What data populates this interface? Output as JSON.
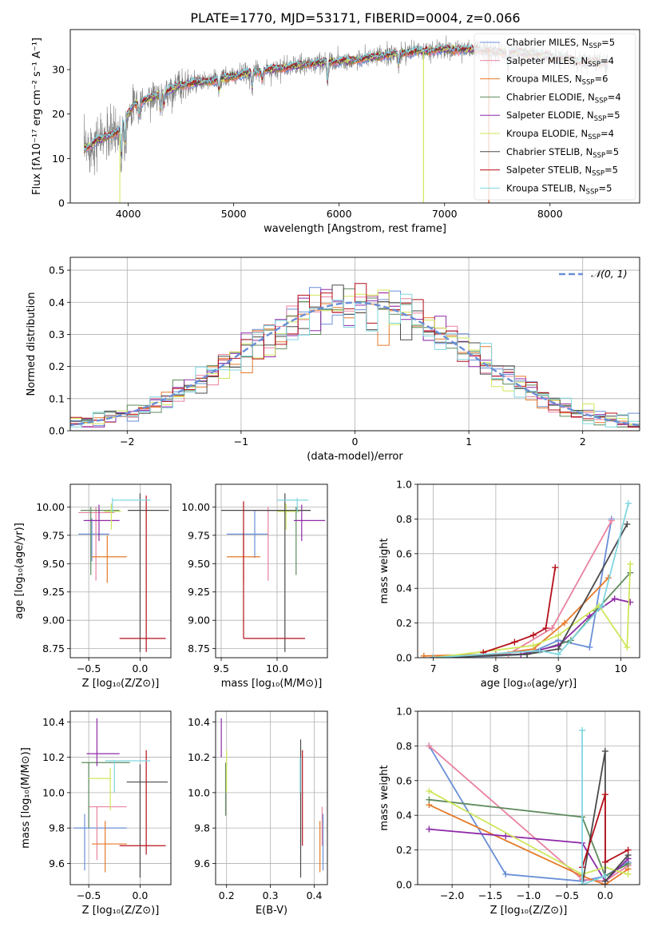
{
  "figure": {
    "title": "PLATE=1770, MJD=53171, FIBERID=0004, z=0.066"
  },
  "colors": {
    "c1": "#6a8fd8",
    "c2": "#e8829f",
    "c3": "#e5792a",
    "c4": "#5c8a5c",
    "c5": "#8e2aa8",
    "c6": "#cfe65a",
    "c7": "#4a4a4a",
    "c8": "#b5101a",
    "c9": "#7fd6e0",
    "data": "#808080",
    "normal": "#6a8fd8"
  },
  "chart_data": [
    {
      "id": "spectrum",
      "type": "line",
      "title": "PLATE=1770, MJD=53171, FIBERID=0004, z=0.066",
      "xlabel": "wavelength [Angstrom, rest frame]",
      "ylabel": "Flux [fλ10⁻¹⁷ erg cm⁻² s⁻¹ A⁻¹]",
      "xlim": [
        3450,
        8850
      ],
      "ylim": [
        0,
        39
      ],
      "xticks": [
        4000,
        5000,
        6000,
        7000,
        8000
      ],
      "yticks": [
        0,
        10,
        20,
        30
      ],
      "continuum": {
        "x": [
          3580,
          3700,
          3900,
          4050,
          4300,
          4500,
          4800,
          5000,
          5200,
          5500,
          5800,
          6100,
          6400,
          6700,
          7000,
          7300,
          7500,
          7700,
          7900,
          8100,
          8300,
          8500
        ],
        "y": [
          12,
          14,
          16,
          22,
          24.5,
          26.5,
          27.5,
          28.5,
          29.5,
          30.5,
          31.5,
          32,
          33,
          34,
          34.5,
          34.5,
          34,
          33.8,
          33.2,
          32.6,
          31.8,
          31.6
        ]
      },
      "data_range": [
        3580,
        8550
      ],
      "legend": [
        "Chabrier MILES, N_SSP=5",
        "Salpeter MILES, N_SSP=4",
        "Kroupa MILES, N_SSP=6",
        "Chabrier ELODIE, N_SSP=4",
        "Salpeter ELODIE, N_SSP=5",
        "Kroupa ELODIE, N_SSP=4",
        "Chabrier STELIB, N_SSP=5",
        "Salpeter STELIB, N_SSP=5",
        "Kroupa STELIB, N_SSP=5"
      ],
      "legend_position": "right"
    },
    {
      "id": "residuals",
      "type": "line",
      "xlabel": "(data-model)/error",
      "ylabel": "Normed distribution",
      "xlim": [
        -2.5,
        2.5
      ],
      "ylim": [
        0,
        0.54
      ],
      "xticks": [
        -2,
        -1,
        0,
        1,
        2
      ],
      "yticks": [
        0.0,
        0.1,
        0.2,
        0.3,
        0.4,
        0.5
      ],
      "legend": [
        "𝒩(0, 1)"
      ],
      "legend_position": "top-right",
      "bin_width": 0.1
    },
    {
      "id": "age_vs_Z",
      "type": "scatter",
      "xlabel": "Z [log₁₀(Z/Z⊙)]",
      "ylabel": "age  [log₁₀(age/yr)]",
      "xlim": [
        -0.68,
        0.3
      ],
      "ylim": [
        8.67,
        10.2
      ],
      "xticks": [
        -0.5,
        0.0
      ],
      "yticks": [
        8.75,
        9.0,
        9.25,
        9.5,
        9.75,
        10.0
      ],
      "errorbars": [
        {
          "x": -0.47,
          "y": 9.76,
          "xe": [
            -0.6,
            -0.3
          ],
          "ye": [
            9.52,
            9.9
          ]
        },
        {
          "x": -0.43,
          "y": 9.95,
          "xe": [
            -0.6,
            -0.25
          ],
          "ye": [
            9.35,
            10.0
          ]
        },
        {
          "x": -0.32,
          "y": 9.56,
          "xe": [
            -0.47,
            -0.13
          ],
          "ye": [
            9.33,
            9.75
          ]
        },
        {
          "x": -0.48,
          "y": 9.97,
          "xe": [
            -0.58,
            -0.2
          ],
          "ye": [
            9.4,
            10.0
          ]
        },
        {
          "x": -0.4,
          "y": 9.88,
          "xe": [
            -0.55,
            -0.2
          ],
          "ye": [
            9.7,
            10.02
          ]
        },
        {
          "x": -0.28,
          "y": 9.96,
          "xe": [
            -0.35,
            -0.18
          ],
          "ye": [
            9.8,
            10.03
          ]
        },
        {
          "x": 0.0,
          "y": 9.97,
          "xe": [
            -0.12,
            0.28
          ],
          "ye": [
            8.72,
            10.12
          ]
        },
        {
          "x": 0.06,
          "y": 8.84,
          "xe": [
            -0.2,
            0.25
          ],
          "ye": [
            8.72,
            10.1
          ]
        },
        {
          "x": -0.27,
          "y": 10.06,
          "xe": [
            -0.27,
            0.1
          ],
          "ye": [
            9.95,
            10.08
          ]
        }
      ]
    },
    {
      "id": "age_vs_mass",
      "type": "scatter",
      "xlabel": "mass [log₁₀(M/M⊙)]",
      "ylabel": "",
      "xlim": [
        9.45,
        10.45
      ],
      "ylim": [
        8.67,
        10.2
      ],
      "xticks": [
        9.5,
        10.0
      ],
      "yticks": [
        8.75,
        9.0,
        9.25,
        9.5,
        9.75,
        10.0
      ],
      "errorbars": [
        {
          "x": 9.8,
          "y": 9.76,
          "xe": [
            9.55,
            9.92
          ],
          "ye": [
            9.55,
            9.97
          ]
        },
        {
          "x": 9.92,
          "y": 9.97,
          "xe": [
            9.7,
            10.1
          ],
          "ye": [
            9.35,
            10.0
          ]
        },
        {
          "x": 9.7,
          "y": 9.56,
          "xe": [
            9.55,
            9.85
          ],
          "ye": [
            9.33,
            9.75
          ]
        },
        {
          "x": 10.17,
          "y": 9.97,
          "xe": [
            9.9,
            10.3
          ],
          "ye": [
            9.4,
            10.0
          ]
        },
        {
          "x": 10.22,
          "y": 9.88,
          "xe": [
            10.15,
            10.43
          ],
          "ye": [
            9.7,
            10.02
          ]
        },
        {
          "x": 10.08,
          "y": 9.96,
          "xe": [
            10.0,
            10.2
          ],
          "ye": [
            9.8,
            10.03
          ]
        },
        {
          "x": 10.07,
          "y": 9.97,
          "xe": [
            9.5,
            10.3
          ],
          "ye": [
            8.72,
            10.12
          ]
        },
        {
          "x": 9.7,
          "y": 8.84,
          "xe": [
            9.7,
            10.25
          ],
          "ye": [
            8.84,
            10.05
          ]
        },
        {
          "x": 10.18,
          "y": 10.06,
          "xe": [
            10.0,
            10.28
          ],
          "ye": [
            9.95,
            10.08
          ]
        }
      ]
    },
    {
      "id": "weight_vs_age",
      "type": "line",
      "xlabel": "age  [log₁₀(age/yr)]",
      "ylabel": "mass weight",
      "xlim": [
        6.75,
        10.3
      ],
      "ylim": [
        0,
        1.0
      ],
      "xticks": [
        7,
        8,
        9,
        10
      ],
      "yticks": [
        0.0,
        0.2,
        0.4,
        0.6,
        0.8,
        1.0
      ],
      "series": [
        {
          "x": [
            7.0,
            8.0,
            8.5,
            9.0,
            9.5,
            9.85
          ],
          "y": [
            0.0,
            0.01,
            0.02,
            0.1,
            0.06,
            0.8
          ]
        },
        {
          "x": [
            7.0,
            8.2,
            8.9,
            9.85
          ],
          "y": [
            0.0,
            0.02,
            0.17,
            0.79
          ]
        },
        {
          "x": [
            6.85,
            8.0,
            8.6,
            9.1,
            9.8
          ],
          "y": [
            0.01,
            0.02,
            0.05,
            0.2,
            0.46
          ]
        },
        {
          "x": [
            7.0,
            8.5,
            9.2,
            9.6,
            10.15
          ],
          "y": [
            0.0,
            0.02,
            0.1,
            0.27,
            0.49
          ]
        },
        {
          "x": [
            7.0,
            8.4,
            9.0,
            9.5,
            9.9,
            10.15
          ],
          "y": [
            0.0,
            0.02,
            0.07,
            0.24,
            0.34,
            0.32
          ]
        },
        {
          "x": [
            7.0,
            8.6,
            9.0,
            9.65,
            10.1,
            10.15
          ],
          "y": [
            0.0,
            0.07,
            0.13,
            0.3,
            0.06,
            0.54
          ]
        },
        {
          "x": [
            7.0,
            8.5,
            9.0,
            10.1
          ],
          "y": [
            0.0,
            0.02,
            0.05,
            0.77
          ]
        },
        {
          "x": [
            7.8,
            8.3,
            8.6,
            8.8,
            8.95
          ],
          "y": [
            0.03,
            0.09,
            0.13,
            0.17,
            0.52
          ]
        },
        {
          "x": [
            7.0,
            8.7,
            9.0,
            9.7,
            10.12
          ],
          "y": [
            0.0,
            0.04,
            0.02,
            0.3,
            0.89
          ]
        }
      ]
    },
    {
      "id": "mass_vs_Z",
      "type": "scatter",
      "xlabel": "Z [log₁₀(Z/Z⊙)]",
      "ylabel": "mass [log₁₀(M/M⊙)]",
      "xlim": [
        -0.68,
        0.3
      ],
      "ylim": [
        9.48,
        10.46
      ],
      "xticks": [
        -0.5,
        0.0
      ],
      "yticks": [
        9.6,
        9.8,
        10.0,
        10.2,
        10.4
      ],
      "errorbars": [
        {
          "x": -0.54,
          "y": 9.8,
          "xe": [
            -0.65,
            -0.13
          ],
          "ye": [
            9.56,
            9.88
          ]
        },
        {
          "x": -0.42,
          "y": 9.92,
          "xe": [
            -0.5,
            -0.13
          ],
          "ye": [
            9.62,
            9.92
          ]
        },
        {
          "x": -0.34,
          "y": 9.71,
          "xe": [
            -0.47,
            -0.13
          ],
          "ye": [
            9.55,
            9.84
          ]
        },
        {
          "x": -0.5,
          "y": 10.17,
          "xe": [
            -0.57,
            -0.1
          ],
          "ye": [
            9.8,
            10.17
          ]
        },
        {
          "x": -0.42,
          "y": 10.22,
          "xe": [
            -0.52,
            -0.2
          ],
          "ye": [
            10.15,
            10.42
          ]
        },
        {
          "x": -0.29,
          "y": 10.08,
          "xe": [
            -0.5,
            -0.29
          ],
          "ye": [
            9.9,
            10.14
          ]
        },
        {
          "x": 0.0,
          "y": 10.06,
          "xe": [
            -0.13,
            0.27
          ],
          "ye": [
            9.52,
            10.16
          ]
        },
        {
          "x": 0.06,
          "y": 9.7,
          "xe": [
            -0.2,
            0.25
          ],
          "ye": [
            9.65,
            10.24
          ]
        },
        {
          "x": -0.25,
          "y": 10.18,
          "xe": [
            -0.34,
            0.1
          ],
          "ye": [
            10.0,
            10.18
          ]
        }
      ]
    },
    {
      "id": "mass_vs_ebv",
      "type": "scatter",
      "xlabel": "E(B-V)",
      "ylabel": "",
      "xlim": [
        0.175,
        0.43
      ],
      "ylim": [
        9.48,
        10.46
      ],
      "xticks": [
        0.2,
        0.3,
        0.4
      ],
      "yticks": [
        9.6,
        9.8,
        10.0,
        10.2,
        10.4
      ],
      "errorbars": [
        {
          "x": 0.42,
          "y": 9.8,
          "ye": [
            9.56,
            9.88
          ]
        },
        {
          "x": 0.418,
          "y": 9.92,
          "ye": [
            9.7,
            9.92
          ]
        },
        {
          "x": 0.413,
          "y": 9.71,
          "ye": [
            9.55,
            9.84
          ]
        },
        {
          "x": 0.198,
          "y": 10.17,
          "ye": [
            9.87,
            10.17
          ]
        },
        {
          "x": 0.188,
          "y": 10.3,
          "ye": [
            10.2,
            10.42
          ]
        },
        {
          "x": 0.2,
          "y": 10.08,
          "ye": [
            10.0,
            10.24
          ]
        },
        {
          "x": 0.369,
          "y": 10.06,
          "ye": [
            9.52,
            10.3
          ]
        },
        {
          "x": 0.373,
          "y": 9.98,
          "ye": [
            9.7,
            10.24
          ]
        },
        {
          "x": 0.368,
          "y": 10.18,
          "ye": [
            10.0,
            10.2
          ]
        }
      ]
    },
    {
      "id": "weight_vs_Z",
      "type": "line",
      "xlabel": "Z [log₁₀(Z/Z⊙)]",
      "ylabel": "mass weight",
      "xlim": [
        -2.45,
        0.45
      ],
      "ylim": [
        0,
        1.0
      ],
      "xticks": [
        -2.0,
        -1.5,
        -1.0,
        -0.5,
        0.0
      ],
      "yticks": [
        0.0,
        0.2,
        0.4,
        0.6,
        0.8,
        1.0
      ],
      "series": [
        {
          "x": [
            -2.3,
            -1.3,
            -0.3,
            0.0,
            0.3
          ],
          "y": [
            0.8,
            0.06,
            0.02,
            0.05,
            0.13
          ]
        },
        {
          "x": [
            -2.3,
            -0.3,
            0.0,
            0.3
          ],
          "y": [
            0.8,
            0.03,
            0.02,
            0.11
          ]
        },
        {
          "x": [
            -2.3,
            -0.3,
            0.0,
            0.3
          ],
          "y": [
            0.46,
            0.05,
            0.0,
            0.09
          ]
        },
        {
          "x": [
            -2.3,
            -0.3,
            0.0,
            0.3
          ],
          "y": [
            0.49,
            0.39,
            0.05,
            0.12
          ]
        },
        {
          "x": [
            -2.3,
            -1.3,
            -0.3,
            0.0,
            0.3
          ],
          "y": [
            0.32,
            0.28,
            0.24,
            0.02,
            0.15
          ]
        },
        {
          "x": [
            -2.3,
            -0.3,
            0.0,
            0.3
          ],
          "y": [
            0.54,
            0.06,
            0.1,
            0.06
          ]
        },
        {
          "x": [
            -0.3,
            0.0,
            0.0,
            0.3
          ],
          "y": [
            0.0,
            0.77,
            0.02,
            0.17
          ]
        },
        {
          "x": [
            -0.3,
            0.0,
            0.0,
            0.3
          ],
          "y": [
            0.1,
            0.52,
            0.13,
            0.2
          ]
        },
        {
          "x": [
            -0.3,
            -0.3,
            0.0
          ],
          "y": [
            0.89,
            0.0,
            0.05
          ]
        }
      ]
    }
  ]
}
